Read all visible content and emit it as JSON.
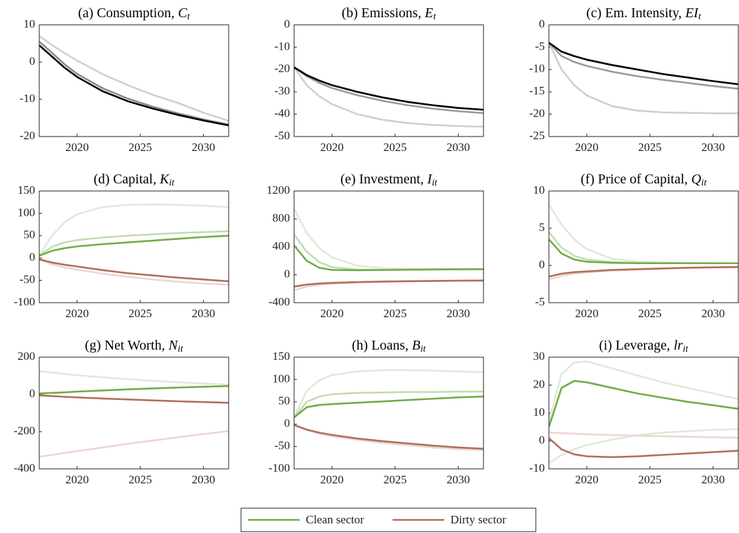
{
  "chart_data": [
    {
      "type": "line",
      "title": "(a) Consumption, ",
      "title_var": "C",
      "title_sub": "t",
      "x": [
        2017,
        2018,
        2019,
        2020,
        2022,
        2024,
        2026,
        2028,
        2030,
        2032
      ],
      "xlim": [
        2017,
        2032
      ],
      "xticks": [
        2020,
        2025,
        2030
      ],
      "ylim": [
        -20,
        10
      ],
      "yticks": [
        -20,
        -10,
        0,
        10
      ],
      "series": [
        {
          "color": "#cfcfcf",
          "values": [
            7,
            4.6,
            2.4,
            0.4,
            -3.2,
            -6.2,
            -8.8,
            -11,
            -13.6,
            -15.8
          ]
        },
        {
          "color": "#8a8a8a",
          "values": [
            5.5,
            2.5,
            -0.6,
            -3.2,
            -7,
            -9.8,
            -12,
            -13.8,
            -15.4,
            -16.8
          ]
        },
        {
          "color": "#000000",
          "values": [
            4.5,
            1.5,
            -1.5,
            -4,
            -7.8,
            -10.5,
            -12.5,
            -14.2,
            -15.7,
            -17
          ]
        }
      ]
    },
    {
      "type": "line",
      "title": "(b) Emissions, ",
      "title_var": "E",
      "title_sub": "t",
      "x": [
        2017,
        2018,
        2019,
        2020,
        2022,
        2024,
        2026,
        2028,
        2030,
        2032
      ],
      "xlim": [
        2017,
        2032
      ],
      "xticks": [
        2020,
        2025,
        2030
      ],
      "ylim": [
        -50,
        0
      ],
      "yticks": [
        -50,
        -40,
        -30,
        -20,
        -10,
        0
      ],
      "series": [
        {
          "color": "#cfcfcf",
          "values": [
            -19,
            -27,
            -32,
            -35.5,
            -40,
            -42.5,
            -44,
            -44.8,
            -45.3,
            -45.6
          ]
        },
        {
          "color": "#9a9a9a",
          "values": [
            -19,
            -23,
            -26,
            -28.3,
            -31.5,
            -34,
            -36,
            -37.5,
            -38.7,
            -39.5
          ]
        },
        {
          "color": "#000000",
          "values": [
            -19,
            -22.5,
            -25,
            -27,
            -30,
            -32.5,
            -34.5,
            -36,
            -37.2,
            -38
          ]
        }
      ]
    },
    {
      "type": "line",
      "title": "(c) Em. Intensity, ",
      "title_var": "EI",
      "title_sub": "t",
      "x": [
        2017,
        2018,
        2019,
        2020,
        2022,
        2024,
        2026,
        2028,
        2030,
        2032
      ],
      "xlim": [
        2017,
        2032
      ],
      "xticks": [
        2020,
        2025,
        2030
      ],
      "ylim": [
        -25,
        0
      ],
      "yticks": [
        -25,
        -20,
        -15,
        -10,
        -5,
        0
      ],
      "series": [
        {
          "color": "#cfcfcf",
          "values": [
            -4,
            -10,
            -13.5,
            -15.8,
            -18.2,
            -19.2,
            -19.6,
            -19.7,
            -19.8,
            -19.8
          ]
        },
        {
          "color": "#9a9a9a",
          "values": [
            -4,
            -7,
            -8.3,
            -9.2,
            -10.5,
            -11.5,
            -12.3,
            -13,
            -13.7,
            -14.3
          ]
        },
        {
          "color": "#000000",
          "values": [
            -4,
            -6,
            -7,
            -7.8,
            -9,
            -10,
            -11,
            -11.8,
            -12.6,
            -13.3
          ]
        }
      ]
    },
    {
      "type": "line",
      "title": "(d) Capital, ",
      "title_var": "K",
      "title_sub": "it",
      "x": [
        2017,
        2018,
        2019,
        2020,
        2022,
        2024,
        2026,
        2028,
        2030,
        2032
      ],
      "xlim": [
        2017,
        2032
      ],
      "xticks": [
        2020,
        2025,
        2030
      ],
      "ylim": [
        -100,
        150
      ],
      "yticks": [
        -100,
        -50,
        0,
        50,
        100,
        150
      ],
      "series": [
        {
          "color": "#dfe9d8",
          "values": [
            5,
            50,
            80,
            98,
            114,
            119,
            120,
            119,
            117,
            114
          ]
        },
        {
          "color": "#c2dcb2",
          "values": [
            5,
            25,
            35,
            40,
            46,
            50,
            53,
            56,
            58,
            60
          ]
        },
        {
          "color": "#ecd6d0",
          "values": [
            -3,
            -14,
            -21,
            -26,
            -35,
            -42,
            -48,
            -53,
            -57,
            -60
          ]
        },
        {
          "color": "#70ad47",
          "values": [
            5,
            16,
            22,
            26,
            31,
            35,
            39,
            43,
            47,
            50
          ]
        },
        {
          "color": "#b0705a",
          "values": [
            -3,
            -10,
            -15,
            -19,
            -27,
            -34,
            -39,
            -44,
            -48,
            -52
          ]
        }
      ]
    },
    {
      "type": "line",
      "title": "(e) Investment, ",
      "title_var": "I",
      "title_sub": "it",
      "x": [
        2017,
        2018,
        2019,
        2020,
        2022,
        2024,
        2026,
        2028,
        2030,
        2032
      ],
      "xlim": [
        2017,
        2032
      ],
      "xticks": [
        2020,
        2025,
        2030
      ],
      "ylim": [
        -400,
        1200
      ],
      "yticks": [
        -400,
        0,
        400,
        800,
        1200
      ],
      "series": [
        {
          "color": "#dfe9d8",
          "values": [
            950,
            600,
            380,
            250,
            130,
            95,
            85,
            82,
            82,
            82
          ]
        },
        {
          "color": "#c2dcb2",
          "values": [
            580,
            330,
            180,
            110,
            75,
            72,
            75,
            78,
            80,
            82
          ]
        },
        {
          "color": "#ecd6d0",
          "values": [
            -220,
            -170,
            -145,
            -130,
            -112,
            -102,
            -95,
            -90,
            -86,
            -83
          ]
        },
        {
          "color": "#70ad47",
          "values": [
            420,
            200,
            100,
            70,
            65,
            68,
            72,
            75,
            78,
            80
          ]
        },
        {
          "color": "#b0705a",
          "values": [
            -170,
            -140,
            -125,
            -115,
            -105,
            -97,
            -92,
            -88,
            -85,
            -82
          ]
        }
      ]
    },
    {
      "type": "line",
      "title": "(f) Price of Capital, ",
      "title_var": "Q",
      "title_sub": "it",
      "x": [
        2017,
        2018,
        2019,
        2020,
        2022,
        2024,
        2026,
        2028,
        2030,
        2032
      ],
      "xlim": [
        2017,
        2032
      ],
      "xticks": [
        2020,
        2025,
        2030
      ],
      "ylim": [
        -5,
        10
      ],
      "yticks": [
        -5,
        0,
        5,
        10
      ],
      "series": [
        {
          "color": "#dfe9d8",
          "values": [
            8.2,
            5.5,
            3.5,
            2.2,
            0.9,
            0.5,
            0.4,
            0.35,
            0.3,
            0.3
          ]
        },
        {
          "color": "#c2dcb2",
          "values": [
            4.5,
            2.4,
            1.3,
            0.8,
            0.45,
            0.35,
            0.3,
            0.3,
            0.3,
            0.3
          ]
        },
        {
          "color": "#ecd6d0",
          "values": [
            -1.9,
            -1.4,
            -1.1,
            -0.95,
            -0.7,
            -0.55,
            -0.45,
            -0.35,
            -0.28,
            -0.22
          ]
        },
        {
          "color": "#70ad47",
          "values": [
            3.5,
            1.6,
            0.8,
            0.5,
            0.35,
            0.3,
            0.3,
            0.3,
            0.3,
            0.3
          ]
        },
        {
          "color": "#b0705a",
          "values": [
            -1.5,
            -1.1,
            -0.9,
            -0.8,
            -0.6,
            -0.5,
            -0.4,
            -0.3,
            -0.25,
            -0.2
          ]
        }
      ]
    },
    {
      "type": "line",
      "title": "(g) Net Worth, ",
      "title_var": "N",
      "title_sub": "it",
      "x": [
        2017,
        2018,
        2019,
        2020,
        2022,
        2024,
        2026,
        2028,
        2030,
        2032
      ],
      "xlim": [
        2017,
        2032
      ],
      "xticks": [
        2020,
        2025,
        2030
      ],
      "ylim": [
        -400,
        200
      ],
      "yticks": [
        -400,
        -200,
        0,
        200
      ],
      "series": [
        {
          "color": "#dfe9d8",
          "values": [
            125,
            118,
            110,
            103,
            92,
            82,
            73,
            65,
            58,
            52
          ]
        },
        {
          "color": "#ecd6d0",
          "values": [
            -335,
            -325,
            -315,
            -305,
            -285,
            -265,
            -248,
            -230,
            -213,
            -197
          ]
        },
        {
          "color": "#70ad47",
          "values": [
            5,
            8,
            11,
            15,
            21,
            27,
            32,
            37,
            41,
            45
          ]
        },
        {
          "color": "#b0705a",
          "values": [
            -5,
            -9,
            -13,
            -16,
            -22,
            -27,
            -32,
            -37,
            -41,
            -45
          ]
        }
      ]
    },
    {
      "type": "line",
      "title": "(h) Loans, ",
      "title_var": "B",
      "title_sub": "it",
      "x": [
        2017,
        2018,
        2019,
        2020,
        2022,
        2024,
        2026,
        2028,
        2030,
        2032
      ],
      "xlim": [
        2017,
        2032
      ],
      "xticks": [
        2020,
        2025,
        2030
      ],
      "ylim": [
        -100,
        150
      ],
      "yticks": [
        -100,
        -50,
        0,
        50,
        100,
        150
      ],
      "series": [
        {
          "color": "#dfe9d8",
          "values": [
            15,
            75,
            98,
            110,
            118,
            121,
            121,
            120,
            118,
            116
          ]
        },
        {
          "color": "#c2dcb2",
          "values": [
            15,
            50,
            62,
            67,
            70,
            71,
            72,
            72,
            73,
            73
          ]
        },
        {
          "color": "#ecd6d0",
          "values": [
            -2,
            -13,
            -21,
            -27,
            -35,
            -42,
            -47,
            -52,
            -56,
            -58
          ]
        },
        {
          "color": "#70ad47",
          "values": [
            15,
            38,
            43,
            45,
            48,
            51,
            54,
            57,
            60,
            62
          ]
        },
        {
          "color": "#b0705a",
          "values": [
            -2,
            -12,
            -19,
            -24,
            -32,
            -38,
            -43,
            -48,
            -52,
            -55
          ]
        }
      ]
    },
    {
      "type": "line",
      "title": "(i) Leverage, ",
      "title_var": "lr",
      "title_sub": "it",
      "x": [
        2017,
        2018,
        2019,
        2020,
        2022,
        2024,
        2026,
        2028,
        2030,
        2032
      ],
      "xlim": [
        2017,
        2032
      ],
      "xticks": [
        2020,
        2025,
        2030
      ],
      "ylim": [
        -10,
        30
      ],
      "yticks": [
        -10,
        0,
        10,
        20,
        30
      ],
      "series": [
        {
          "color": "#dfe9d8",
          "values": [
            7,
            24,
            28,
            28.5,
            26,
            23.5,
            21,
            19,
            17,
            15
          ]
        },
        {
          "color": "#dfe9d8",
          "values": [
            -8,
            -5,
            -3,
            -1.5,
            0.5,
            2,
            3,
            3.5,
            4,
            4.2
          ]
        },
        {
          "color": "#ecd6d0",
          "values": [
            3,
            2.8,
            2.6,
            2.4,
            2.1,
            1.9,
            1.7,
            1.5,
            1.3,
            1.2
          ]
        },
        {
          "color": "#70ad47",
          "values": [
            5,
            19,
            21.5,
            21,
            19,
            17,
            15.5,
            14,
            12.8,
            11.5
          ]
        },
        {
          "color": "#b0705a",
          "values": [
            1,
            -3,
            -4.8,
            -5.5,
            -5.8,
            -5.5,
            -5,
            -4.5,
            -4,
            -3.5
          ]
        }
      ]
    }
  ],
  "legend": [
    {
      "name": "Clean sector",
      "color": "#70ad47"
    },
    {
      "name": "Dirty sector",
      "color": "#b0705a"
    }
  ]
}
